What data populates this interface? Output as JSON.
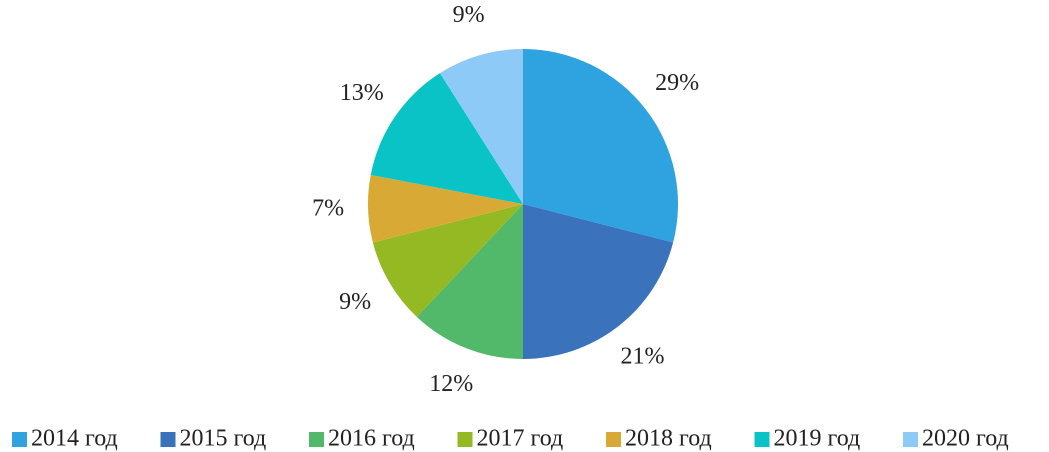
{
  "chart_data": {
    "type": "pie",
    "categories": [
      "2014 год",
      "2015 год",
      "2016 год",
      "2017 год",
      "2018 год",
      "2019 год",
      "2020 год"
    ],
    "values": [
      29,
      21,
      12,
      9,
      7,
      13,
      9
    ],
    "value_labels": [
      "29%",
      "21%",
      "12%",
      "9%",
      "7%",
      "13%",
      "9%"
    ],
    "colors": [
      "#2ea3e0",
      "#3a73bc",
      "#52b86a",
      "#95b923",
      "#d8aa35",
      "#09c3c6",
      "#8ecaf8"
    ],
    "legend": "bottom"
  }
}
